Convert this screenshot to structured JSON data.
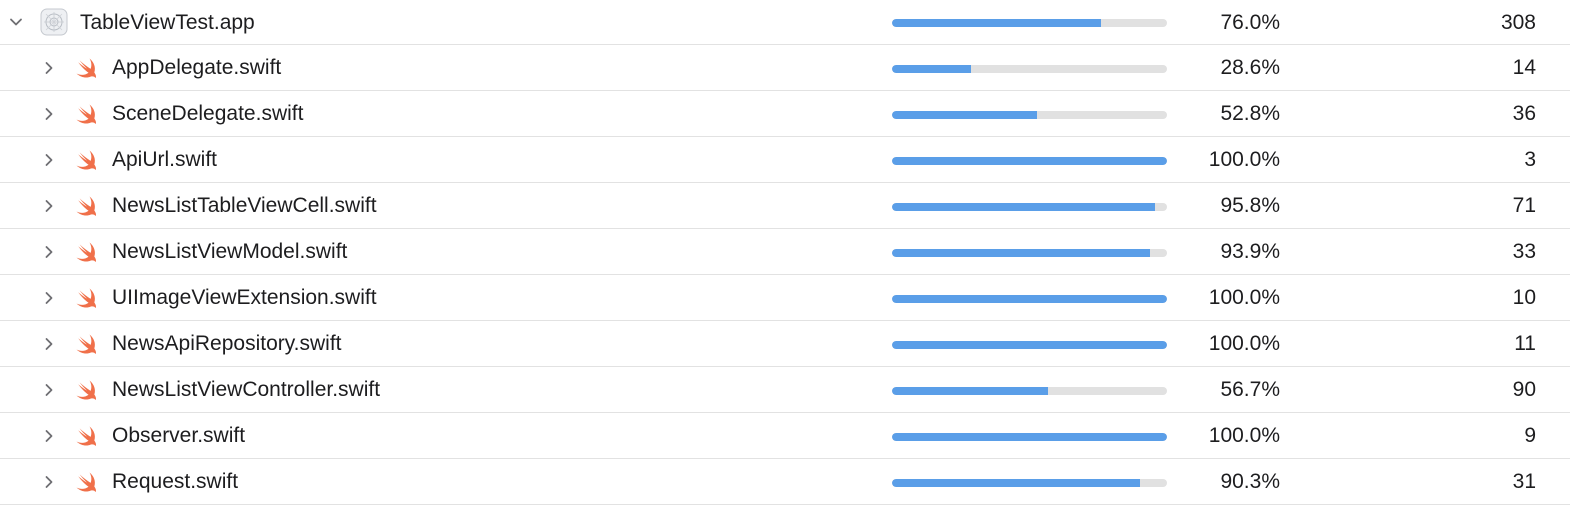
{
  "colors": {
    "bar_fill": "#5a9ee8",
    "bar_track": "#e1e1e1",
    "swift_icon": "#f0704a",
    "divider": "#e2e2e2"
  },
  "root": {
    "name": "TableViewTest.app",
    "coverage_label": "76.0%",
    "coverage_fraction": 0.76,
    "count": "308",
    "icon": "app-target-icon",
    "expanded": true
  },
  "files": [
    {
      "name": "AppDelegate.swift",
      "coverage_label": "28.6%",
      "coverage_fraction": 0.286,
      "count": "14",
      "icon": "swift-icon"
    },
    {
      "name": "SceneDelegate.swift",
      "coverage_label": "52.8%",
      "coverage_fraction": 0.528,
      "count": "36",
      "icon": "swift-icon"
    },
    {
      "name": "ApiUrl.swift",
      "coverage_label": "100.0%",
      "coverage_fraction": 1.0,
      "count": "3",
      "icon": "swift-icon"
    },
    {
      "name": "NewsListTableViewCell.swift",
      "coverage_label": "95.8%",
      "coverage_fraction": 0.958,
      "count": "71",
      "icon": "swift-icon"
    },
    {
      "name": "NewsListViewModel.swift",
      "coverage_label": "93.9%",
      "coverage_fraction": 0.939,
      "count": "33",
      "icon": "swift-icon"
    },
    {
      "name": "UIImageViewExtension.swift",
      "coverage_label": "100.0%",
      "coverage_fraction": 1.0,
      "count": "10",
      "icon": "swift-icon"
    },
    {
      "name": "NewsApiRepository.swift",
      "coverage_label": "100.0%",
      "coverage_fraction": 1.0,
      "count": "11",
      "icon": "swift-icon"
    },
    {
      "name": "NewsListViewController.swift",
      "coverage_label": "56.7%",
      "coverage_fraction": 0.567,
      "count": "90",
      "icon": "swift-icon"
    },
    {
      "name": "Observer.swift",
      "coverage_label": "100.0%",
      "coverage_fraction": 1.0,
      "count": "9",
      "icon": "swift-icon"
    },
    {
      "name": "Request.swift",
      "coverage_label": "90.3%",
      "coverage_fraction": 0.903,
      "count": "31",
      "icon": "swift-icon"
    }
  ]
}
